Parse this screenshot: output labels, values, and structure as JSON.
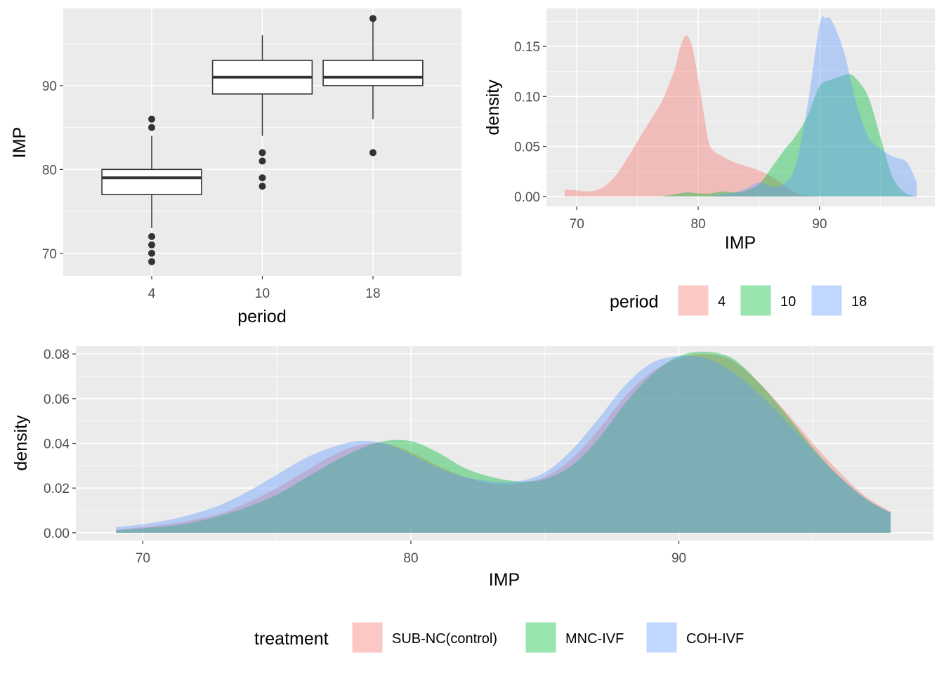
{
  "colors": {
    "panel_bg": "#ebebeb",
    "grid": "#ffffff",
    "tick_text": "#4d4d4d",
    "box_line": "#333333",
    "group_red": "#F8766D",
    "group_green": "#00BA38",
    "group_blue": "#619CFF"
  },
  "chart_data": [
    {
      "id": "boxplot",
      "type": "box",
      "xlabel": "period",
      "ylabel": "IMP",
      "categories": [
        "4",
        "10",
        "18"
      ],
      "ylim": [
        67.3,
        99.2
      ],
      "yticks": [
        70,
        80,
        90
      ],
      "yticks_minor": [
        75,
        85,
        95
      ],
      "boxes": [
        {
          "category": "4",
          "q1": 77,
          "median": 79,
          "q3": 80,
          "whisker_low": 73,
          "whisker_high": 84,
          "outliers": [
            69,
            70,
            71,
            72,
            85,
            86
          ]
        },
        {
          "category": "10",
          "q1": 89,
          "median": 91,
          "q3": 93,
          "whisker_low": 84,
          "whisker_high": 96,
          "outliers": [
            78,
            79,
            81,
            82
          ]
        },
        {
          "category": "18",
          "q1": 90,
          "median": 91,
          "q3": 93,
          "whisker_low": 86,
          "whisker_high": 98,
          "outliers": [
            82,
            98
          ]
        }
      ]
    },
    {
      "id": "density_period",
      "type": "area",
      "xlabel": "IMP",
      "ylabel": "density",
      "xlim": [
        67.5,
        99.5
      ],
      "ylim": [
        -0.01,
        0.188
      ],
      "xticks": [
        70,
        80,
        90
      ],
      "xticks_minor": [
        75,
        85,
        95
      ],
      "yticks": [
        0.0,
        0.05,
        0.1,
        0.15
      ],
      "ytick_labels": [
        "0.00",
        "0.05",
        "0.10",
        "0.15"
      ],
      "legend": {
        "title": "period",
        "position": "bottom",
        "entries": [
          "4",
          "10",
          "18"
        ]
      },
      "series": [
        {
          "name": "4",
          "color_key": "group_red",
          "x": [
            69,
            70,
            71,
            72,
            73,
            74,
            75,
            76,
            77,
            78,
            78.5,
            79,
            79.5,
            80,
            80.5,
            81,
            82,
            83,
            84,
            85,
            86,
            87,
            88,
            89,
            90
          ],
          "y": [
            0.007,
            0.006,
            0.005,
            0.008,
            0.018,
            0.035,
            0.055,
            0.075,
            0.095,
            0.125,
            0.148,
            0.161,
            0.15,
            0.118,
            0.08,
            0.05,
            0.04,
            0.034,
            0.03,
            0.026,
            0.02,
            0.012,
            0.004,
            0.001,
            0.0
          ]
        },
        {
          "name": "10",
          "color_key": "group_green",
          "x": [
            77,
            78,
            79,
            80,
            81,
            82,
            83,
            84,
            85,
            86,
            87,
            88,
            89,
            90,
            91,
            92,
            92.5,
            93,
            94,
            95,
            96,
            97,
            98
          ],
          "y": [
            0.0,
            0.002,
            0.004,
            0.003,
            0.003,
            0.005,
            0.004,
            0.006,
            0.012,
            0.028,
            0.045,
            0.06,
            0.08,
            0.11,
            0.117,
            0.121,
            0.122,
            0.118,
            0.1,
            0.06,
            0.02,
            0.004,
            0.0
          ]
        },
        {
          "name": "18",
          "color_key": "group_blue",
          "x": [
            81,
            82,
            83,
            84,
            85,
            86,
            87,
            88,
            89,
            90,
            90.5,
            91,
            92,
            93,
            94,
            95,
            96,
            97,
            97.5,
            98
          ],
          "y": [
            0.0,
            0.002,
            0.004,
            0.008,
            0.014,
            0.01,
            0.012,
            0.03,
            0.09,
            0.172,
            0.178,
            0.176,
            0.145,
            0.095,
            0.06,
            0.048,
            0.04,
            0.036,
            0.028,
            0.014
          ]
        }
      ]
    },
    {
      "id": "density_treatment",
      "type": "area",
      "xlabel": "IMP",
      "ylabel": "density",
      "xlim": [
        67.5,
        99.5
      ],
      "ylim": [
        -0.0035,
        0.0835
      ],
      "xticks": [
        70,
        80,
        90
      ],
      "xticks_minor": [
        75,
        85,
        95
      ],
      "yticks": [
        0.0,
        0.02,
        0.04,
        0.06,
        0.08
      ],
      "ytick_labels": [
        "0.00",
        "0.02",
        "0.04",
        "0.06",
        "0.08"
      ],
      "legend": {
        "title": "treatment",
        "position": "bottom",
        "entries": [
          "SUB-NC(control)",
          "MNC-IVF",
          "COH-IVF"
        ]
      },
      "series": [
        {
          "name": "SUB-NC(control)",
          "color_key": "group_red",
          "x": [
            69,
            70,
            71,
            72,
            73,
            74,
            75,
            76,
            77,
            78,
            79,
            80,
            81,
            82,
            83,
            84,
            85,
            86,
            87,
            88,
            89,
            90,
            91,
            92,
            93,
            94,
            95,
            96,
            97,
            97.9
          ],
          "y": [
            0.0015,
            0.0025,
            0.004,
            0.006,
            0.009,
            0.014,
            0.02,
            0.027,
            0.034,
            0.039,
            0.04,
            0.036,
            0.03,
            0.025,
            0.022,
            0.022,
            0.025,
            0.033,
            0.046,
            0.061,
            0.072,
            0.078,
            0.08,
            0.077,
            0.067,
            0.054,
            0.04,
            0.027,
            0.016,
            0.0095
          ]
        },
        {
          "name": "MNC-IVF",
          "color_key": "group_green",
          "x": [
            69,
            70,
            71,
            72,
            73,
            74,
            75,
            76,
            77,
            78,
            79,
            80,
            81,
            82,
            83,
            84,
            85,
            86,
            87,
            88,
            89,
            90,
            91,
            92,
            93,
            94,
            95,
            96,
            97,
            97.9
          ],
          "y": [
            0.001,
            0.002,
            0.003,
            0.005,
            0.008,
            0.012,
            0.017,
            0.024,
            0.031,
            0.037,
            0.041,
            0.041,
            0.036,
            0.029,
            0.025,
            0.023,
            0.024,
            0.03,
            0.042,
            0.058,
            0.071,
            0.079,
            0.081,
            0.078,
            0.067,
            0.053,
            0.038,
            0.025,
            0.015,
            0.009
          ]
        },
        {
          "name": "COH-IVF",
          "color_key": "group_blue",
          "x": [
            69,
            70,
            71,
            72,
            73,
            74,
            75,
            76,
            77,
            78,
            79,
            80,
            81,
            82,
            83,
            84,
            85,
            86,
            87,
            88,
            89,
            90,
            91,
            92,
            93,
            94,
            95,
            96,
            97,
            97.9
          ],
          "y": [
            0.0025,
            0.0038,
            0.0058,
            0.0088,
            0.013,
            0.019,
            0.026,
            0.033,
            0.038,
            0.041,
            0.04,
            0.035,
            0.029,
            0.025,
            0.023,
            0.023,
            0.027,
            0.037,
            0.051,
            0.066,
            0.076,
            0.079,
            0.078,
            0.072,
            0.062,
            0.05,
            0.037,
            0.025,
            0.015,
            0.009
          ]
        }
      ]
    }
  ]
}
